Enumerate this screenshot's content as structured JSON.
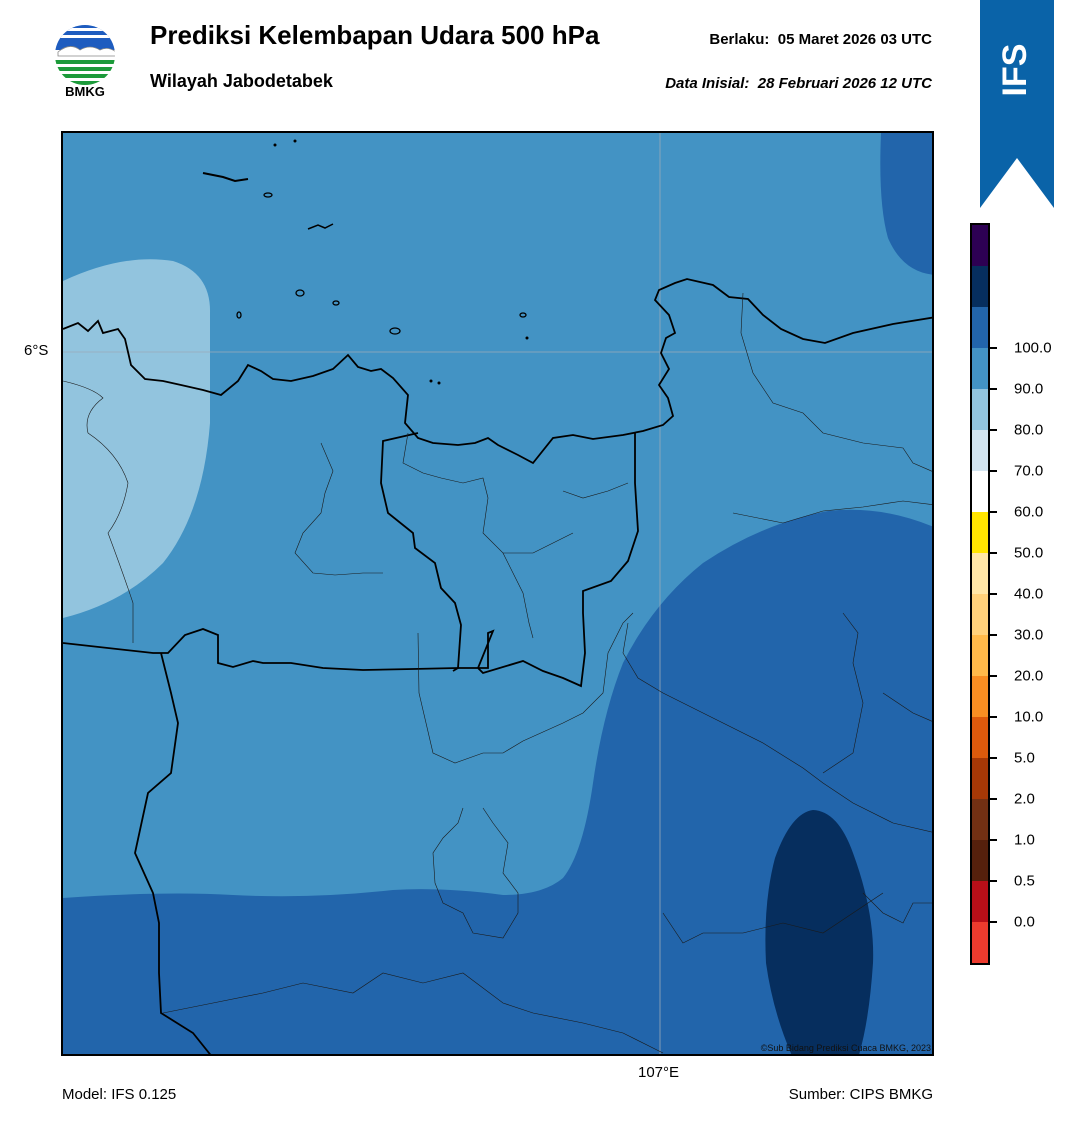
{
  "header": {
    "title": "Prediksi Kelembapan Udara 500 hPa",
    "region": "Wilayah Jabodetabek",
    "valid_label": "Berlaku:",
    "valid_time": "05 Maret 2026 03 UTC",
    "init_label": "Data Inisial:",
    "init_time": "28 Februari 2026 12 UTC"
  },
  "logo": {
    "text": "BMKG",
    "icon": "bmkg-logo-icon"
  },
  "ribbon": {
    "text": "IFS",
    "color": "#0a63a8"
  },
  "map": {
    "lat_label": "6°S",
    "lon_label": "107°E",
    "copyright": "©Sub Bidang Prediksi Cuaca BMKG, 2023",
    "fill_colors": {
      "60-70": "#92c4de",
      "70-80": "#4393c4",
      "80-90": "#2265ab",
      "90-100": "#062e5e"
    }
  },
  "colorbar": {
    "ticks": [
      "0.0",
      "0.5",
      "1.0",
      "2.0",
      "5.0",
      "10.0",
      "20.0",
      "30.0",
      "40.0",
      "50.0",
      "60.0",
      "70.0",
      "80.0",
      "90.0",
      "100.0"
    ],
    "colors": [
      "#2d0053",
      "#062e5e",
      "#2265ab",
      "#4393c4",
      "#92c4de",
      "#d3e4f0",
      "#ffffff",
      "#ffe400",
      "#ffe6a6",
      "#ffd17a",
      "#ffba4a",
      "#f88e22",
      "#dd5a0c",
      "#a63806",
      "#733013",
      "#55200c",
      "#b80f18",
      "#ec3b2e"
    ]
  },
  "footer": {
    "model": "Model: IFS 0.125",
    "source": "Sumber: CIPS BMKG"
  }
}
